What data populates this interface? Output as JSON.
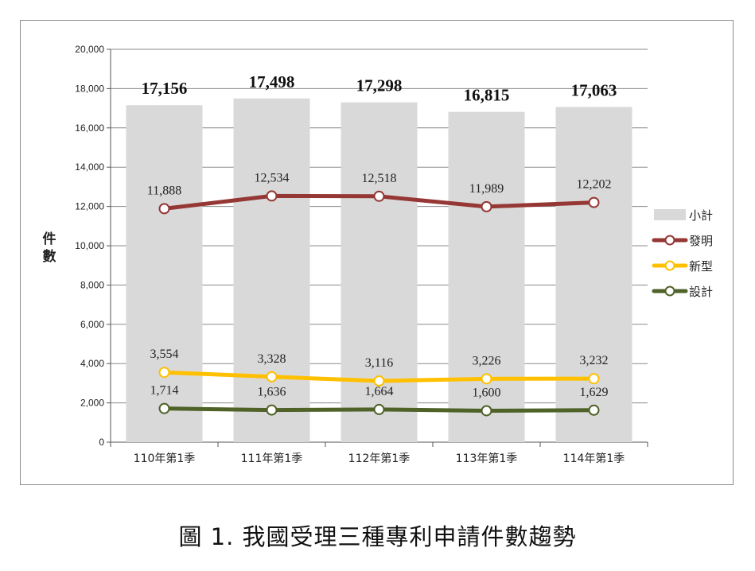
{
  "caption": "圖 1.  我國受理三種專利申請件數趨勢",
  "chart_data": {
    "type": "bar+line",
    "categories": [
      "110年第1季",
      "111年第1季",
      "112年第1季",
      "113年第1季",
      "114年第1季"
    ],
    "ylabel": "件數",
    "ylim": [
      0,
      20000
    ],
    "yticks": [
      0,
      2000,
      4000,
      6000,
      8000,
      10000,
      12000,
      14000,
      16000,
      18000,
      20000
    ],
    "ytick_labels": [
      "0",
      "2,000",
      "4,000",
      "6,000",
      "8,000",
      "10,000",
      "12,000",
      "14,000",
      "16,000",
      "18,000",
      "20,000"
    ],
    "grid": true,
    "legend_position": "right",
    "bars": {
      "name": "小計",
      "color": "#d9d9d9",
      "values": [
        17156,
        17498,
        17298,
        16815,
        17063
      ],
      "labels": [
        "17,156",
        "17,498",
        "17,298",
        "16,815",
        "17,063"
      ]
    },
    "series": [
      {
        "name": "發明",
        "color": "#953735",
        "values": [
          11888,
          12534,
          12518,
          11989,
          12202
        ],
        "labels": [
          "11,888",
          "12,534",
          "12,518",
          "11,989",
          "12,202"
        ]
      },
      {
        "name": "新型",
        "color": "#ffc000",
        "values": [
          3554,
          3328,
          3116,
          3226,
          3232
        ],
        "labels": [
          "3,554",
          "3,328",
          "3,116",
          "3,226",
          "3,232"
        ]
      },
      {
        "name": "設計",
        "color": "#4f6228",
        "values": [
          1714,
          1636,
          1664,
          1600,
          1629
        ],
        "labels": [
          "1,714",
          "1,636",
          "1,664",
          "1,600",
          "1,629"
        ]
      }
    ]
  }
}
